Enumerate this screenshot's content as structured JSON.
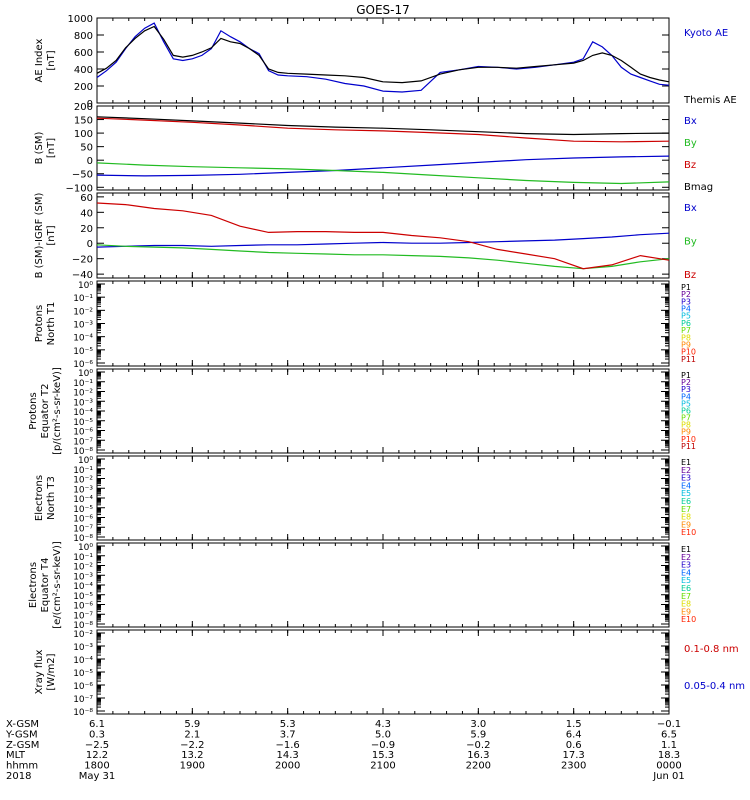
{
  "title": "GOES-17",
  "colors": {
    "black": "#000000",
    "blue": "#0000cc",
    "green": "#22bb22",
    "red": "#cc0000",
    "p_colors": [
      "#000000",
      "#660099",
      "#2200cc",
      "#0066ff",
      "#00bbdd",
      "#00cc99",
      "#66dd00",
      "#dddd00",
      "#ff8800",
      "#ff2200",
      "#bb0000"
    ],
    "e_colors": [
      "#000000",
      "#660099",
      "#2200cc",
      "#0066ff",
      "#00bbdd",
      "#00cc99",
      "#66dd00",
      "#dddd00",
      "#ff8800",
      "#ff2200",
      "#bb0000"
    ]
  },
  "chart_data": [
    {
      "type": "line",
      "ylabel_lines": [
        "AE Index",
        "[nT]"
      ],
      "ylim": [
        0,
        1000
      ],
      "yticks": [
        "0",
        "200",
        "400",
        "600",
        "800",
        "1000"
      ],
      "legend": [
        "Kyoto AE",
        "Themis AE"
      ],
      "x_hours": [
        0,
        0.1,
        0.2,
        0.3,
        0.4,
        0.5,
        0.6,
        0.7,
        0.8,
        0.9,
        1,
        1.1,
        1.2,
        1.3,
        1.4,
        1.5,
        1.6,
        1.7,
        1.8,
        1.9,
        2,
        2.2,
        2.4,
        2.6,
        2.8,
        3,
        3.2,
        3.4,
        3.6,
        3.8,
        4,
        4.2,
        4.4,
        4.6,
        4.8,
        5,
        5.1,
        5.2,
        5.3,
        5.4,
        5.5,
        5.6,
        5.7,
        5.8,
        5.9,
        6
      ],
      "series": [
        {
          "name": "Kyoto AE",
          "color": "blue",
          "values": [
            300,
            380,
            480,
            640,
            780,
            880,
            940,
            720,
            520,
            500,
            520,
            560,
            640,
            850,
            780,
            720,
            640,
            580,
            380,
            330,
            320,
            310,
            280,
            230,
            200,
            140,
            130,
            150,
            360,
            390,
            430,
            420,
            400,
            420,
            450,
            480,
            520,
            720,
            660,
            560,
            420,
            340,
            300,
            260,
            220,
            210
          ]
        },
        {
          "name": "Themis AE",
          "color": "black",
          "values": [
            350,
            410,
            500,
            650,
            760,
            850,
            900,
            750,
            560,
            540,
            560,
            600,
            650,
            760,
            720,
            700,
            640,
            560,
            400,
            360,
            350,
            340,
            330,
            320,
            300,
            250,
            240,
            260,
            340,
            390,
            420,
            420,
            410,
            430,
            450,
            470,
            500,
            560,
            590,
            560,
            500,
            420,
            340,
            300,
            270,
            250
          ]
        }
      ]
    },
    {
      "type": "line",
      "ylabel_lines": [
        "B (SM)",
        "[nT]"
      ],
      "ylim": [
        -110,
        200
      ],
      "yticks": [
        "-100",
        "-50",
        "0",
        "50",
        "100",
        "150",
        "200"
      ],
      "legend": [
        "Bx",
        "By",
        "Bz",
        "Bmag"
      ],
      "x_hours": [
        0,
        0.5,
        1,
        1.5,
        2,
        2.5,
        3,
        3.5,
        4,
        4.5,
        5,
        5.5,
        6
      ],
      "series": [
        {
          "name": "Bx",
          "color": "blue",
          "values": [
            -55,
            -58,
            -56,
            -52,
            -45,
            -38,
            -28,
            -18,
            -8,
            2,
            8,
            12,
            15
          ]
        },
        {
          "name": "By",
          "color": "green",
          "values": [
            -10,
            -18,
            -24,
            -28,
            -32,
            -38,
            -45,
            -55,
            -65,
            -75,
            -82,
            -86,
            -80
          ]
        },
        {
          "name": "Bz",
          "color": "red",
          "values": [
            155,
            148,
            140,
            130,
            118,
            112,
            108,
            102,
            95,
            82,
            70,
            68,
            70
          ]
        },
        {
          "name": "Bmag",
          "color": "black",
          "values": [
            160,
            153,
            145,
            137,
            128,
            122,
            118,
            112,
            105,
            98,
            95,
            98,
            100
          ]
        }
      ]
    },
    {
      "type": "line",
      "ylabel_lines": [
        "B (SM)-IGRF (SM)",
        "[nT]"
      ],
      "ylim": [
        -45,
        65
      ],
      "yticks": [
        "-40",
        "-20",
        "0",
        "20",
        "40",
        "60"
      ],
      "legend": [
        "Bx",
        "By",
        "Bz"
      ],
      "x_hours": [
        0,
        0.3,
        0.6,
        0.9,
        1.2,
        1.5,
        1.8,
        2.1,
        2.4,
        2.7,
        3,
        3.3,
        3.6,
        3.9,
        4.2,
        4.5,
        4.8,
        5.1,
        5.4,
        5.7,
        6
      ],
      "series": [
        {
          "name": "Bx",
          "color": "blue",
          "values": [
            -5,
            -4,
            -3,
            -3,
            -4,
            -3,
            -2,
            -2,
            -1,
            0,
            1,
            0,
            0,
            1,
            2,
            3,
            4,
            6,
            8,
            11,
            13
          ]
        },
        {
          "name": "By",
          "color": "green",
          "values": [
            -2,
            -4,
            -5,
            -6,
            -8,
            -10,
            -12,
            -13,
            -14,
            -15,
            -15,
            -16,
            -17,
            -19,
            -22,
            -26,
            -30,
            -33,
            -30,
            -24,
            -20
          ]
        },
        {
          "name": "Bz",
          "color": "red",
          "values": [
            52,
            50,
            45,
            42,
            36,
            22,
            14,
            15,
            15,
            14,
            14,
            10,
            7,
            2,
            -8,
            -14,
            -20,
            -33,
            -28,
            -16,
            -22
          ]
        }
      ]
    },
    {
      "type": "line",
      "ylabel_lines": [
        "Protons",
        "North T1"
      ],
      "log_ticks": [
        "10⁰",
        "10⁻¹",
        "10⁻²",
        "10⁻³",
        "10⁻⁴",
        "10⁻⁵",
        "10⁻⁶"
      ],
      "legend": [
        "P1",
        "P2",
        "P3",
        "P4",
        "P5",
        "P6",
        "P7",
        "P8",
        "P9",
        "P10",
        "P11"
      ],
      "legend_colors": "p_colors",
      "series": []
    },
    {
      "type": "line",
      "ylabel_lines": [
        "Protons",
        "Equator T2",
        "[p/(cm²-s-sr-keV)]"
      ],
      "log_ticks": [
        "10⁰",
        "10⁻¹",
        "10⁻²",
        "10⁻³",
        "10⁻⁴",
        "10⁻⁵",
        "10⁻⁶",
        "10⁻⁷",
        "10⁻⁸"
      ],
      "legend": [
        "P1",
        "P2",
        "P3",
        "P4",
        "P5",
        "P6",
        "P7",
        "P8",
        "P9",
        "P10",
        "P11"
      ],
      "legend_colors": "p_colors",
      "series": []
    },
    {
      "type": "line",
      "ylabel_lines": [
        "Electrons",
        "North T3"
      ],
      "log_ticks": [
        "10⁰",
        "10⁻¹",
        "10⁻²",
        "10⁻³",
        "10⁻⁴",
        "10⁻⁵",
        "10⁻⁶",
        "10⁻⁷",
        "10⁻⁸"
      ],
      "legend": [
        "E1",
        "E2",
        "E3",
        "E4",
        "E5",
        "E6",
        "E7",
        "E8",
        "E9",
        "E10"
      ],
      "legend_colors": "e_colors",
      "series": []
    },
    {
      "type": "line",
      "ylabel_lines": [
        "Electrons",
        "Equator T4",
        "[e/(cm²-s-sr-keV)]"
      ],
      "log_ticks": [
        "10⁰",
        "10⁻¹",
        "10⁻²",
        "10⁻³",
        "10⁻⁴",
        "10⁻⁵",
        "10⁻⁶",
        "10⁻⁷",
        "10⁻⁸"
      ],
      "legend": [
        "E1",
        "E2",
        "E3",
        "E4",
        "E5",
        "E6",
        "E7",
        "E8",
        "E9",
        "E10"
      ],
      "legend_colors": "e_colors",
      "series": []
    },
    {
      "type": "line",
      "ylabel_lines": [
        "Xray flux",
        "[W/m2]"
      ],
      "log_ticks": [
        "10⁻²",
        "10⁻³",
        "10⁻⁴",
        "10⁻⁵",
        "10⁻⁶",
        "10⁻⁷",
        "10⁻⁸"
      ],
      "legend": [
        "0.1-0.8 nm",
        "0.05-0.4 nm"
      ],
      "legend_colors_explicit": [
        "red",
        "blue"
      ],
      "series": []
    }
  ],
  "x_axis": {
    "row_labels": [
      "X-GSM",
      "Y-GSM",
      "Z-GSM",
      "MLT",
      "hhmm",
      "2018"
    ],
    "columns": [
      [
        "6.1",
        "0.3",
        "-2.5",
        "12.2",
        "1800",
        "May 31"
      ],
      [
        "5.9",
        "2.1",
        "-2.2",
        "13.2",
        "1900",
        ""
      ],
      [
        "5.3",
        "3.7",
        "-1.6",
        "14.3",
        "2000",
        ""
      ],
      [
        "4.3",
        "5.0",
        "-0.9",
        "15.3",
        "2100",
        ""
      ],
      [
        "3.0",
        "5.9",
        "-0.2",
        "16.3",
        "2200",
        ""
      ],
      [
        "1.5",
        "6.4",
        "0.6",
        "17.3",
        "2300",
        ""
      ],
      [
        "-0.1",
        "6.5",
        "1.1",
        "18.3",
        "0000",
        "Jun 01"
      ]
    ]
  }
}
